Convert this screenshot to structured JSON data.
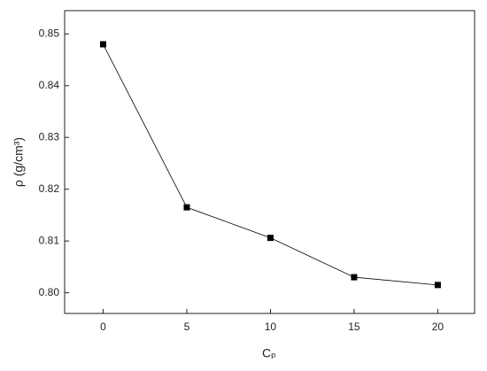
{
  "chart_data": {
    "type": "line",
    "x": [
      0,
      5,
      10,
      15,
      20
    ],
    "series": [
      {
        "color": "#000000",
        "values": [
          0.848,
          0.8165,
          0.8106,
          0.803,
          0.8015
        ]
      }
    ],
    "xlabel": "Cₚ",
    "ylabel": "ρ (g/cm³)",
    "xlim": [
      -2.3,
      22.2
    ],
    "ylim": [
      0.796,
      0.8545
    ],
    "xticks": [
      0,
      5,
      10,
      15,
      20
    ],
    "yticks": [
      {
        "value": 0.8,
        "label": "0.80"
      },
      0.81,
      0.82,
      0.83,
      0.84,
      0.85
    ]
  }
}
